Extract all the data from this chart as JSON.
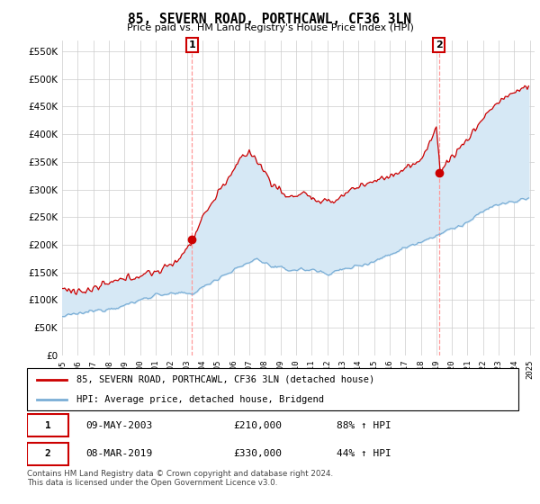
{
  "title": "85, SEVERN ROAD, PORTHCAWL, CF36 3LN",
  "subtitle": "Price paid vs. HM Land Registry's House Price Index (HPI)",
  "red_label": "85, SEVERN ROAD, PORTHCAWL, CF36 3LN (detached house)",
  "blue_label": "HPI: Average price, detached house, Bridgend",
  "purchase1_date": "09-MAY-2003",
  "purchase1_price": 210000,
  "purchase1_pct": "88% ↑ HPI",
  "purchase2_date": "08-MAR-2019",
  "purchase2_price": 330000,
  "purchase2_pct": "44% ↑ HPI",
  "footer": "Contains HM Land Registry data © Crown copyright and database right 2024.\nThis data is licensed under the Open Government Licence v3.0.",
  "red_color": "#cc0000",
  "blue_color": "#7aaed6",
  "fill_color": "#d6e8f5",
  "vline_color": "#ff9999",
  "ylim": [
    0,
    570000
  ],
  "yticks": [
    0,
    50000,
    100000,
    150000,
    200000,
    250000,
    300000,
    350000,
    400000,
    450000,
    500000,
    550000
  ],
  "start_year": 1995,
  "end_year": 2025
}
